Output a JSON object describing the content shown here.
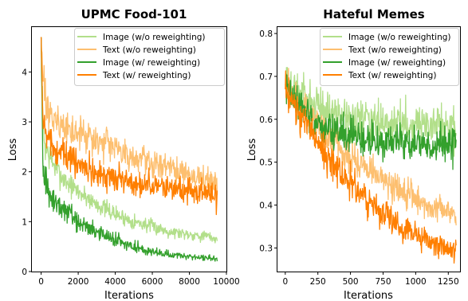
{
  "chart_data": [
    {
      "type": "line",
      "title": "UPMC Food-101",
      "xlabel": "Iterations",
      "ylabel": "Loss",
      "xlim": [
        -500,
        10000
      ],
      "ylim": [
        0,
        4.9
      ],
      "xticks": [
        0,
        2000,
        4000,
        6000,
        8000,
        10000
      ],
      "xtick_labels": [
        "0",
        "2000",
        "4000",
        "6000",
        "8000",
        "10000"
      ],
      "yticks": [
        0,
        1,
        2,
        3,
        4
      ],
      "ytick_labels": [
        "0",
        "1",
        "2",
        "3",
        "4"
      ],
      "grid": false,
      "legend_position": "top-right",
      "series": [
        {
          "name": "Image (w/o reweighting)",
          "color": "#b2df8a",
          "x": [
            0,
            100,
            200,
            400,
            600,
            1000,
            1500,
            2000,
            3000,
            4000,
            5000,
            6000,
            7000,
            8000,
            9000,
            9500
          ],
          "y": [
            4.7,
            2.9,
            2.55,
            2.35,
            2.2,
            1.95,
            1.75,
            1.6,
            1.35,
            1.15,
            1.0,
            0.9,
            0.8,
            0.75,
            0.7,
            0.65
          ],
          "noise": [
            0,
            0.25,
            0.25,
            0.22,
            0.2,
            0.18,
            0.16,
            0.15,
            0.13,
            0.12,
            0.11,
            0.1,
            0.09,
            0.08,
            0.08,
            0.08
          ]
        },
        {
          "name": "Text  (w/o reweighting)",
          "color": "#fdbf6f",
          "x": [
            0,
            100,
            200,
            400,
            600,
            1000,
            1500,
            2000,
            3000,
            4000,
            5000,
            6000,
            7000,
            8000,
            9000,
            9500
          ],
          "y": [
            4.7,
            3.8,
            3.45,
            3.25,
            3.1,
            2.95,
            2.85,
            2.75,
            2.6,
            2.45,
            2.3,
            2.2,
            2.05,
            1.95,
            1.85,
            1.8
          ],
          "noise": [
            0,
            0.3,
            0.3,
            0.3,
            0.28,
            0.26,
            0.25,
            0.24,
            0.22,
            0.21,
            0.2,
            0.2,
            0.19,
            0.19,
            0.19,
            0.18
          ]
        },
        {
          "name": "Image (w/ reweighting)",
          "color": "#33a02c",
          "x": [
            0,
            100,
            200,
            400,
            600,
            1000,
            1500,
            2000,
            3000,
            4000,
            5000,
            6000,
            7000,
            8000,
            9000,
            9500
          ],
          "y": [
            4.7,
            2.0,
            1.8,
            1.6,
            1.45,
            1.3,
            1.15,
            1.0,
            0.8,
            0.62,
            0.5,
            0.4,
            0.33,
            0.3,
            0.27,
            0.25
          ],
          "noise": [
            0,
            0.25,
            0.25,
            0.22,
            0.2,
            0.18,
            0.16,
            0.15,
            0.12,
            0.1,
            0.08,
            0.06,
            0.05,
            0.04,
            0.04,
            0.04
          ]
        },
        {
          "name": "Text  (w/ reweighting)",
          "color": "#ff7f00",
          "x": [
            0,
            100,
            200,
            400,
            600,
            1000,
            1500,
            2000,
            3000,
            4000,
            5000,
            6000,
            7000,
            8000,
            9000,
            9500
          ],
          "y": [
            4.7,
            3.1,
            2.85,
            2.65,
            2.5,
            2.35,
            2.25,
            2.15,
            2.0,
            1.88,
            1.8,
            1.72,
            1.65,
            1.6,
            1.55,
            1.5
          ],
          "noise": [
            0,
            0.28,
            0.27,
            0.26,
            0.25,
            0.24,
            0.23,
            0.22,
            0.2,
            0.19,
            0.18,
            0.18,
            0.18,
            0.18,
            0.18,
            0.18
          ]
        }
      ]
    },
    {
      "type": "line",
      "title": "Hateful Memes",
      "xlabel": "Iterations",
      "ylabel": "Loss",
      "xlim": [
        -60,
        1340
      ],
      "ylim": [
        0.245,
        0.815
      ],
      "xticks": [
        0,
        250,
        500,
        750,
        1000,
        1250
      ],
      "xtick_labels": [
        "0",
        "250",
        "500",
        "750",
        "1000",
        "1250"
      ],
      "yticks": [
        0.3,
        0.4,
        0.5,
        0.6,
        0.7,
        0.8
      ],
      "ytick_labels": [
        "0.3",
        "0.4",
        "0.5",
        "0.6",
        "0.7",
        "0.8"
      ],
      "grid": false,
      "legend_position": "top-right",
      "series": [
        {
          "name": "Image (w/o reweighting)",
          "color": "#b2df8a",
          "x": [
            0,
            100,
            200,
            300,
            400,
            500,
            600,
            700,
            800,
            900,
            1000,
            1100,
            1200,
            1310
          ],
          "y": [
            0.68,
            0.66,
            0.64,
            0.62,
            0.61,
            0.6,
            0.6,
            0.59,
            0.59,
            0.59,
            0.59,
            0.58,
            0.58,
            0.58
          ],
          "noise": [
            0.03,
            0.035,
            0.035,
            0.035,
            0.035,
            0.035,
            0.035,
            0.035,
            0.035,
            0.035,
            0.035,
            0.035,
            0.035,
            0.035
          ]
        },
        {
          "name": "Text  (w/o reweighting)",
          "color": "#fdbf6f",
          "x": [
            0,
            100,
            200,
            300,
            400,
            500,
            600,
            700,
            800,
            900,
            1000,
            1100,
            1200,
            1310
          ],
          "y": [
            0.68,
            0.64,
            0.6,
            0.57,
            0.54,
            0.51,
            0.49,
            0.47,
            0.45,
            0.43,
            0.41,
            0.4,
            0.39,
            0.38
          ],
          "noise": [
            0.03,
            0.03,
            0.03,
            0.03,
            0.03,
            0.03,
            0.03,
            0.025,
            0.025,
            0.025,
            0.025,
            0.02,
            0.02,
            0.02
          ]
        },
        {
          "name": "Image (w/ reweighting)",
          "color": "#33a02c",
          "x": [
            0,
            100,
            200,
            300,
            400,
            500,
            600,
            700,
            800,
            900,
            1000,
            1100,
            1200,
            1310
          ],
          "y": [
            0.67,
            0.63,
            0.6,
            0.58,
            0.57,
            0.56,
            0.56,
            0.55,
            0.55,
            0.55,
            0.55,
            0.54,
            0.54,
            0.54
          ],
          "noise": [
            0.025,
            0.03,
            0.03,
            0.03,
            0.03,
            0.03,
            0.03,
            0.03,
            0.03,
            0.03,
            0.03,
            0.03,
            0.03,
            0.03
          ]
        },
        {
          "name": "Text  (w/ reweighting)",
          "color": "#ff7f00",
          "x": [
            0,
            100,
            200,
            300,
            400,
            500,
            600,
            700,
            800,
            900,
            1000,
            1100,
            1200,
            1310
          ],
          "y": [
            0.67,
            0.62,
            0.57,
            0.52,
            0.48,
            0.45,
            0.42,
            0.39,
            0.37,
            0.35,
            0.33,
            0.32,
            0.3,
            0.29
          ],
          "noise": [
            0.03,
            0.03,
            0.03,
            0.03,
            0.03,
            0.03,
            0.025,
            0.025,
            0.025,
            0.025,
            0.025,
            0.02,
            0.02,
            0.02
          ]
        }
      ]
    }
  ]
}
